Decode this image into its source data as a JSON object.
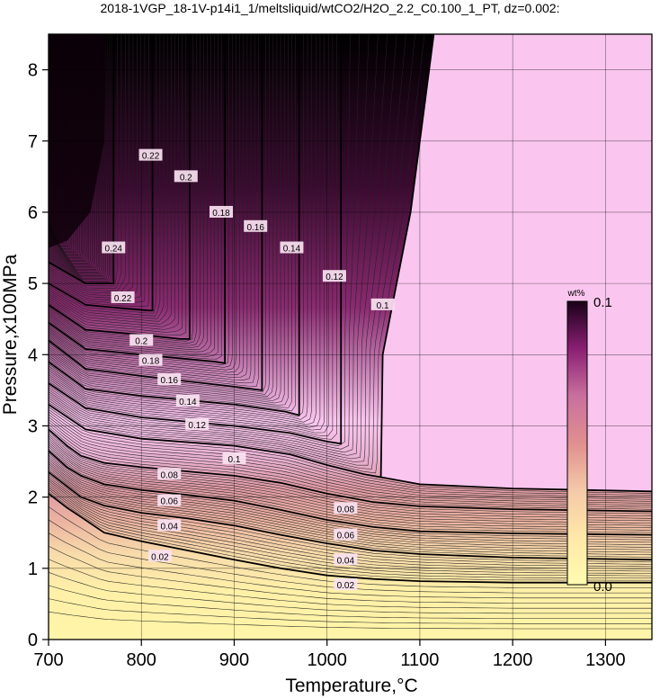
{
  "chart_data": {
    "type": "contour",
    "title": "2018-1VGP_18-1V-p14i1_1/meltsliquid/wtCO2/H2O_2.2_C0.100_1_PT, dz=0.002:",
    "xlabel": "Temperature,°C",
    "ylabel": "Pressure,x100MPa",
    "xlim": [
      700,
      1350
    ],
    "ylim": [
      0,
      8.5
    ],
    "x_ticks": [
      "700",
      "800",
      "900",
      "1000",
      "1100",
      "1200",
      "1300"
    ],
    "y_ticks": [
      "0",
      "1",
      "2",
      "3",
      "4",
      "5",
      "6",
      "7",
      "8"
    ],
    "grid": true,
    "contour_interval": 0.002,
    "colorbar": {
      "unit": "wt%",
      "max_label": "0.1",
      "min_label": "0.0",
      "placement": "right-center",
      "colors": [
        "#fffbb0",
        "#ffe8a8",
        "#f4c9a8",
        "#e08f8f",
        "#c96f9e",
        "#8a1f73",
        "#1a0018"
      ]
    },
    "plateau_value": 0.1,
    "plateau_color": "#fac6ef",
    "bottom_color": "#fff5a8",
    "major_contours": [
      {
        "label": "0.02",
        "points": [
          [
            700,
            2.05
          ],
          [
            720,
            1.85
          ],
          [
            735,
            1.72
          ],
          [
            760,
            1.5
          ],
          [
            800,
            1.38
          ],
          [
            850,
            1.25
          ],
          [
            900,
            1.12
          ],
          [
            950,
            1.0
          ],
          [
            1000,
            0.9
          ],
          [
            1050,
            0.85
          ],
          [
            1100,
            0.82
          ],
          [
            1200,
            0.8
          ],
          [
            1350,
            0.8
          ]
        ]
      },
      {
        "label": "0.04",
        "points": [
          [
            700,
            2.35
          ],
          [
            720,
            2.15
          ],
          [
            735,
            2.0
          ],
          [
            760,
            1.88
          ],
          [
            800,
            1.78
          ],
          [
            850,
            1.7
          ],
          [
            900,
            1.6
          ],
          [
            950,
            1.47
          ],
          [
            1000,
            1.35
          ],
          [
            1050,
            1.25
          ],
          [
            1100,
            1.2
          ],
          [
            1200,
            1.15
          ],
          [
            1350,
            1.12
          ]
        ]
      },
      {
        "label": "0.06",
        "points": [
          [
            700,
            2.65
          ],
          [
            720,
            2.42
          ],
          [
            735,
            2.3
          ],
          [
            760,
            2.18
          ],
          [
            800,
            2.1
          ],
          [
            850,
            2.03
          ],
          [
            900,
            1.95
          ],
          [
            950,
            1.82
          ],
          [
            1000,
            1.68
          ],
          [
            1050,
            1.58
          ],
          [
            1100,
            1.52
          ],
          [
            1200,
            1.49
          ],
          [
            1350,
            1.47
          ]
        ]
      },
      {
        "label": "0.08",
        "points": [
          [
            700,
            2.95
          ],
          [
            720,
            2.72
          ],
          [
            735,
            2.58
          ],
          [
            760,
            2.48
          ],
          [
            800,
            2.42
          ],
          [
            850,
            2.36
          ],
          [
            900,
            2.3
          ],
          [
            950,
            2.2
          ],
          [
            1000,
            2.05
          ],
          [
            1050,
            1.93
          ],
          [
            1100,
            1.87
          ],
          [
            1200,
            1.83
          ],
          [
            1350,
            1.8
          ]
        ]
      },
      {
        "label": "0.1",
        "points": [
          [
            700,
            3.3
          ],
          [
            740,
            2.95
          ],
          [
            800,
            2.82
          ],
          [
            900,
            2.72
          ],
          [
            960,
            2.6
          ],
          [
            1000,
            2.45
          ],
          [
            1040,
            2.32
          ],
          [
            1058,
            2.28
          ],
          [
            1060,
            4.0
          ],
          [
            1075,
            5.0
          ],
          [
            1090,
            6.0
          ],
          [
            1105,
            7.5
          ],
          [
            1115,
            8.5
          ]
        ]
      },
      {
        "label": "0.12",
        "points": [
          [
            700,
            3.6
          ],
          [
            740,
            3.25
          ],
          [
            800,
            3.12
          ],
          [
            900,
            3.0
          ],
          [
            960,
            2.9
          ],
          [
            1000,
            2.78
          ],
          [
            1015,
            2.75
          ],
          [
            1015,
            8.5
          ]
        ]
      },
      {
        "label": "0.14",
        "points": [
          [
            700,
            3.9
          ],
          [
            740,
            3.52
          ],
          [
            800,
            3.42
          ],
          [
            900,
            3.3
          ],
          [
            955,
            3.2
          ],
          [
            970,
            3.15
          ],
          [
            970,
            8.5
          ]
        ]
      },
      {
        "label": "0.16",
        "points": [
          [
            700,
            4.2
          ],
          [
            740,
            3.8
          ],
          [
            800,
            3.7
          ],
          [
            900,
            3.55
          ],
          [
            930,
            3.5
          ],
          [
            930,
            8.5
          ]
        ]
      },
      {
        "label": "0.18",
        "points": [
          [
            700,
            4.45
          ],
          [
            740,
            4.08
          ],
          [
            800,
            4.0
          ],
          [
            880,
            3.9
          ],
          [
            890,
            3.88
          ],
          [
            890,
            8.5
          ]
        ]
      },
      {
        "label": "0.2",
        "points": [
          [
            700,
            4.7
          ],
          [
            740,
            4.35
          ],
          [
            800,
            4.28
          ],
          [
            842,
            4.22
          ],
          [
            852,
            4.22
          ],
          [
            852,
            8.5
          ]
        ]
      },
      {
        "label": "0.22",
        "points": [
          [
            700,
            5.0
          ],
          [
            740,
            4.7
          ],
          [
            780,
            4.65
          ],
          [
            808,
            4.62
          ],
          [
            812,
            4.62
          ],
          [
            812,
            8.5
          ]
        ]
      },
      {
        "label": "0.24",
        "points": [
          [
            700,
            5.3
          ],
          [
            740,
            5.0
          ],
          [
            765,
            5.0
          ],
          [
            770,
            5.0
          ],
          [
            770,
            8.5
          ]
        ]
      }
    ]
  }
}
